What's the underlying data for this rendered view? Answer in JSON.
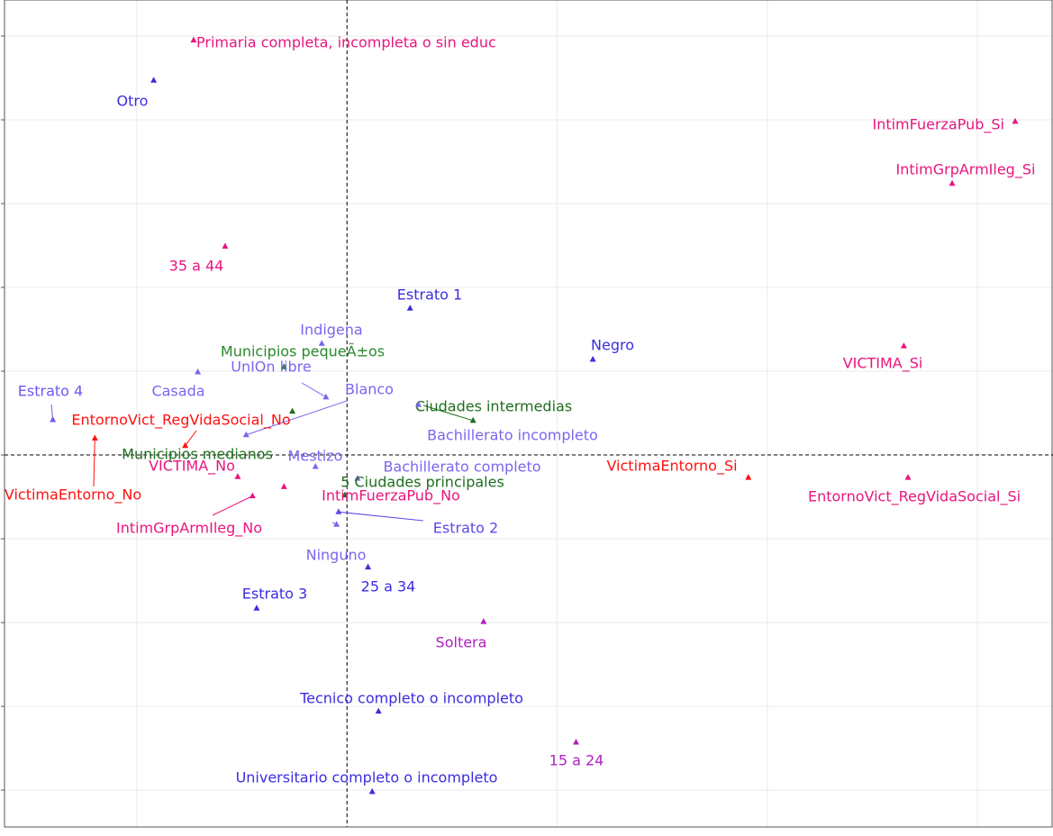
{
  "chart_data": {
    "type": "scatter",
    "xlim": [
      -1.63,
      3.36
    ],
    "ylim": [
      -4.44,
      5.43
    ],
    "xgrid": [
      -1,
      0,
      1,
      2,
      3
    ],
    "ygrid": [
      -4,
      -3,
      -2,
      -1,
      0,
      1,
      2,
      3,
      4,
      5
    ],
    "reference_lines": {
      "x": 0,
      "y": 0
    },
    "points": [
      {
        "label": "Primaria completa, incompleta o sin educ",
        "color": "#e8157e",
        "x": -0.73,
        "y": 4.95
      },
      {
        "label": "Otro",
        "color": "#3b2de0",
        "x": -0.92,
        "y": 4.47
      },
      {
        "label": "IntimFuerzaPub_Si",
        "color": "#e8157e",
        "x": 3.18,
        "y": 3.98
      },
      {
        "label": "IntimGrpArmIleg_Si",
        "color": "#e8157e",
        "x": 2.88,
        "y": 3.24
      },
      {
        "label": "35 a 44",
        "color": "#e8157e",
        "x": -0.58,
        "y": 2.49
      },
      {
        "label": "Estrato 1",
        "color": "#3b2de0",
        "x": 0.3,
        "y": 1.75
      },
      {
        "label": "Indigena",
        "color": "#7a66ee",
        "x": -0.12,
        "y": 1.33
      },
      {
        "label": "Municipios pequeÃ±os",
        "color": "#2a8a2a",
        "x": -0.3,
        "y": 1.05
      },
      {
        "label": "UnIOn libre",
        "color": "#7a66ee",
        "x": -0.48,
        "y": 0.24
      },
      {
        "label": "Negro",
        "color": "#3b2de0",
        "x": 1.17,
        "y": 1.14
      },
      {
        "label": "VICTIMA_Si",
        "color": "#e8157e",
        "x": 2.65,
        "y": 1.3
      },
      {
        "label": "Estrato 4",
        "color": "#6a5af0",
        "x": -1.4,
        "y": 0.42
      },
      {
        "label": "Casada",
        "color": "#7a66ee",
        "x": -0.71,
        "y": 0.99
      },
      {
        "label": "Blanco",
        "color": "#7a66ee",
        "x": -0.1,
        "y": 0.69
      },
      {
        "label": "Ciudades intermedias",
        "color": "#1f6e1f",
        "x": 0.6,
        "y": 0.41
      },
      {
        "label": "EntornoVict_RegVidaSocial_No",
        "color": "#ff1010",
        "x": -0.77,
        "y": 0.11
      },
      {
        "label": "Bachillerato incompleto",
        "color": "#7a66ee",
        "x": 0.34,
        "y": 0.6
      },
      {
        "label": "Municipios medianos",
        "color": "#1f6e1f",
        "x": -0.26,
        "y": 0.52
      },
      {
        "label": "Mestizo",
        "color": "#7a66ee",
        "x": -0.15,
        "y": -0.14
      },
      {
        "label": "VICTIMA_No",
        "color": "#e8157e",
        "x": -0.52,
        "y": -0.26
      },
      {
        "label": "VictimaEntorno_No",
        "color": "#ff1010",
        "x": -1.2,
        "y": 0.2
      },
      {
        "label": "Bachillerato completo",
        "color": "#7a66ee",
        "x": 0.05,
        "y": -0.28
      },
      {
        "label": "5 Ciudades principales",
        "color": "#1f6e1f",
        "x": -0.01,
        "y": -0.48
      },
      {
        "label": "VictimaEntorno_Si",
        "color": "#ff1010",
        "x": 1.91,
        "y": -0.27
      },
      {
        "label": "EntornoVict_RegVidaSocial_Si",
        "color": "#e8157e",
        "x": 2.67,
        "y": -0.27
      },
      {
        "label": "IntimFuerzaPub_No",
        "color": "#e8157e",
        "x": -0.3,
        "y": -0.38
      },
      {
        "label": "IntimGrpArmIleg_No",
        "color": "#e8157e",
        "x": -0.45,
        "y": -0.49
      },
      {
        "label": "Estrato 2",
        "color": "#5a4ae8",
        "x": -0.04,
        "y": -0.68
      },
      {
        "label": "Ninguno",
        "color": "#7a66ee",
        "x": -0.05,
        "y": -0.83
      },
      {
        "label": "25 a 34",
        "color": "#3b2de0",
        "x": 0.1,
        "y": -1.34
      },
      {
        "label": "Estrato 3",
        "color": "#3b2de0",
        "x": -0.43,
        "y": -1.83
      },
      {
        "label": "Soltera",
        "color": "#b020c0",
        "x": 0.65,
        "y": -1.99
      },
      {
        "label": "Tecnico completo o incompleto",
        "color": "#3b2de0",
        "x": 0.15,
        "y": -3.06
      },
      {
        "label": "15 a 24",
        "color": "#b020c0",
        "x": 1.09,
        "y": -3.43
      },
      {
        "label": "Universitario completo o incompleto",
        "color": "#3b2de0",
        "x": 0.12,
        "y": -4.02
      }
    ]
  }
}
